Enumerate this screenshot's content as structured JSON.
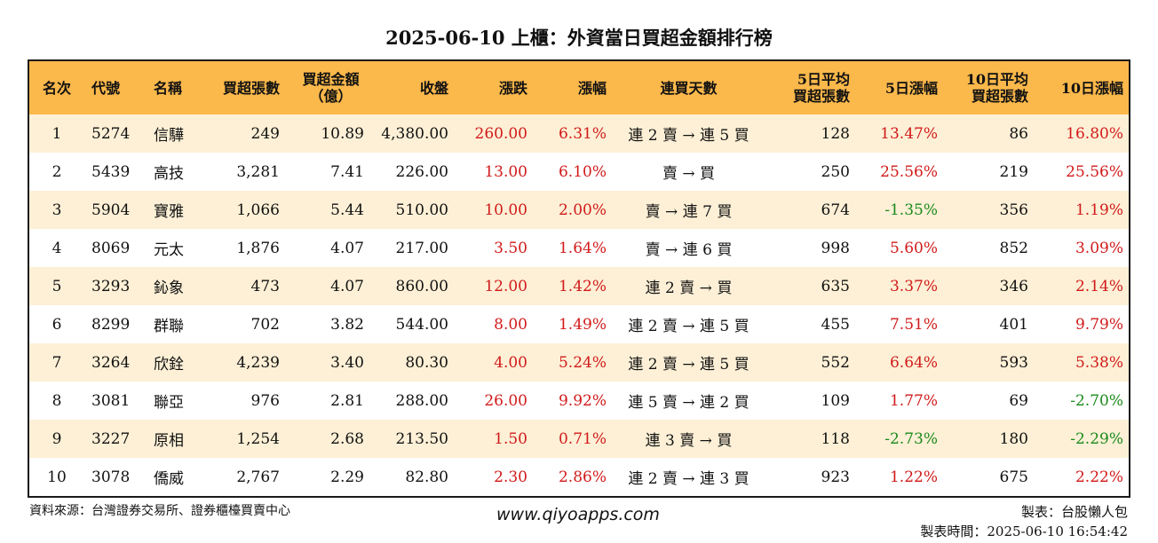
{
  "title": "2025-06-10 上櫃：外資當日買超金額排行榜",
  "colors": {
    "header_bg": "#fbb84b",
    "odd_row_bg": "#fdf0d6",
    "up": "#d11a1a",
    "down": "#1c8a1c"
  },
  "headers": {
    "rank": "名次",
    "code": "代號",
    "name": "名稱",
    "buy_lots": "買超張數",
    "buy_amount_1": "買超金額",
    "buy_amount_2": "（億）",
    "close": "收盤",
    "change": "漲跌",
    "pct": "漲幅",
    "streak": "連買天數",
    "avg5_1": "5日平均",
    "avg5_2": "買超張數",
    "pct5": "5日漲幅",
    "avg10_1": "10日平均",
    "avg10_2": "買超張數",
    "pct10": "10日漲幅"
  },
  "rows": [
    {
      "rank": "1",
      "code": "5274",
      "name": "信驊",
      "lots": "249",
      "amount": "10.89",
      "close": "4,380.00",
      "change": "260.00",
      "pct": "6.31%",
      "streak": "連 2 賣 → 連 5 買",
      "avg5": "128",
      "pct5": "13.47%",
      "avg10": "86",
      "pct10": "16.80%"
    },
    {
      "rank": "2",
      "code": "5439",
      "name": "高技",
      "lots": "3,281",
      "amount": "7.41",
      "close": "226.00",
      "change": "13.00",
      "pct": "6.10%",
      "streak": "賣 → 買",
      "avg5": "250",
      "pct5": "25.56%",
      "avg10": "219",
      "pct10": "25.56%"
    },
    {
      "rank": "3",
      "code": "5904",
      "name": "寶雅",
      "lots": "1,066",
      "amount": "5.44",
      "close": "510.00",
      "change": "10.00",
      "pct": "2.00%",
      "streak": "賣 → 連 7 買",
      "avg5": "674",
      "pct5": "-1.35%",
      "avg10": "356",
      "pct10": "1.19%"
    },
    {
      "rank": "4",
      "code": "8069",
      "name": "元太",
      "lots": "1,876",
      "amount": "4.07",
      "close": "217.00",
      "change": "3.50",
      "pct": "1.64%",
      "streak": "賣 → 連 6 買",
      "avg5": "998",
      "pct5": "5.60%",
      "avg10": "852",
      "pct10": "3.09%"
    },
    {
      "rank": "5",
      "code": "3293",
      "name": "鈊象",
      "lots": "473",
      "amount": "4.07",
      "close": "860.00",
      "change": "12.00",
      "pct": "1.42%",
      "streak": "連 2 賣 → 買",
      "avg5": "635",
      "pct5": "3.37%",
      "avg10": "346",
      "pct10": "2.14%"
    },
    {
      "rank": "6",
      "code": "8299",
      "name": "群聯",
      "lots": "702",
      "amount": "3.82",
      "close": "544.00",
      "change": "8.00",
      "pct": "1.49%",
      "streak": "連 2 賣 → 連 5 買",
      "avg5": "455",
      "pct5": "7.51%",
      "avg10": "401",
      "pct10": "9.79%"
    },
    {
      "rank": "7",
      "code": "3264",
      "name": "欣銓",
      "lots": "4,239",
      "amount": "3.40",
      "close": "80.30",
      "change": "4.00",
      "pct": "5.24%",
      "streak": "連 2 賣 → 連 5 買",
      "avg5": "552",
      "pct5": "6.64%",
      "avg10": "593",
      "pct10": "5.38%"
    },
    {
      "rank": "8",
      "code": "3081",
      "name": "聯亞",
      "lots": "976",
      "amount": "2.81",
      "close": "288.00",
      "change": "26.00",
      "pct": "9.92%",
      "streak": "連 5 賣 → 連 2 買",
      "avg5": "109",
      "pct5": "1.77%",
      "avg10": "69",
      "pct10": "-2.70%"
    },
    {
      "rank": "9",
      "code": "3227",
      "name": "原相",
      "lots": "1,254",
      "amount": "2.68",
      "close": "213.50",
      "change": "1.50",
      "pct": "0.71%",
      "streak": "連 3 賣 → 買",
      "avg5": "118",
      "pct5": "-2.73%",
      "avg10": "180",
      "pct10": "-2.29%"
    },
    {
      "rank": "10",
      "code": "3078",
      "name": "僑威",
      "lots": "2,767",
      "amount": "2.29",
      "close": "82.80",
      "change": "2.30",
      "pct": "2.86%",
      "streak": "連 2 賣 → 連 3 買",
      "avg5": "923",
      "pct5": "1.22%",
      "avg10": "675",
      "pct10": "2.22%"
    }
  ],
  "footer": {
    "source": "資料來源：台灣證券交易所、證券櫃檯買賣中心",
    "website": "www.qiyoapps.com",
    "maker": "製表：台股懶人包",
    "made_time": "製表時間：2025-06-10 16:54:42"
  }
}
